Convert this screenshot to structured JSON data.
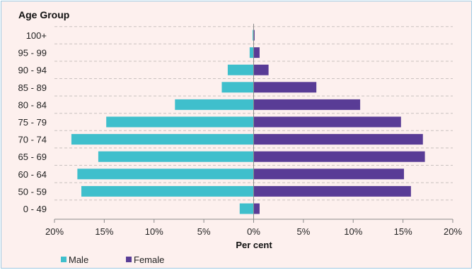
{
  "chart_data": {
    "type": "bar",
    "orientation": "horizontal",
    "layout": "population-pyramid",
    "ylabel": "Age Group",
    "xlabel": "Per cent",
    "categories": [
      "100+",
      "95 - 99",
      "90 - 94",
      "85 - 89",
      "80 - 84",
      "75 - 79",
      "70 - 74",
      "65 - 69",
      "60 - 64",
      "50 - 59",
      "0 - 49"
    ],
    "series": [
      {
        "name": "Male",
        "color": "#3fbfcc",
        "side": "left",
        "values": [
          0.1,
          0.4,
          2.6,
          3.2,
          7.9,
          14.8,
          18.3,
          15.6,
          17.7,
          17.3,
          1.4
        ]
      },
      {
        "name": "Female",
        "color": "#593c96",
        "side": "right",
        "values": [
          0.1,
          0.6,
          1.5,
          6.3,
          10.7,
          14.8,
          17.0,
          17.2,
          15.1,
          15.8,
          0.6
        ]
      }
    ],
    "xlim": [
      -20,
      20
    ],
    "xticks": [
      -20,
      -15,
      -10,
      -5,
      0,
      5,
      10,
      15,
      20
    ],
    "xtick_labels": [
      "20%",
      "15%",
      "10%",
      "5%",
      "0%",
      "5%",
      "10%",
      "15%",
      "20%"
    ],
    "grid": {
      "horizontal_dashed": true,
      "vertical": false
    },
    "legend": {
      "position": "bottom-left",
      "entries": [
        "Male",
        "Female"
      ]
    }
  }
}
